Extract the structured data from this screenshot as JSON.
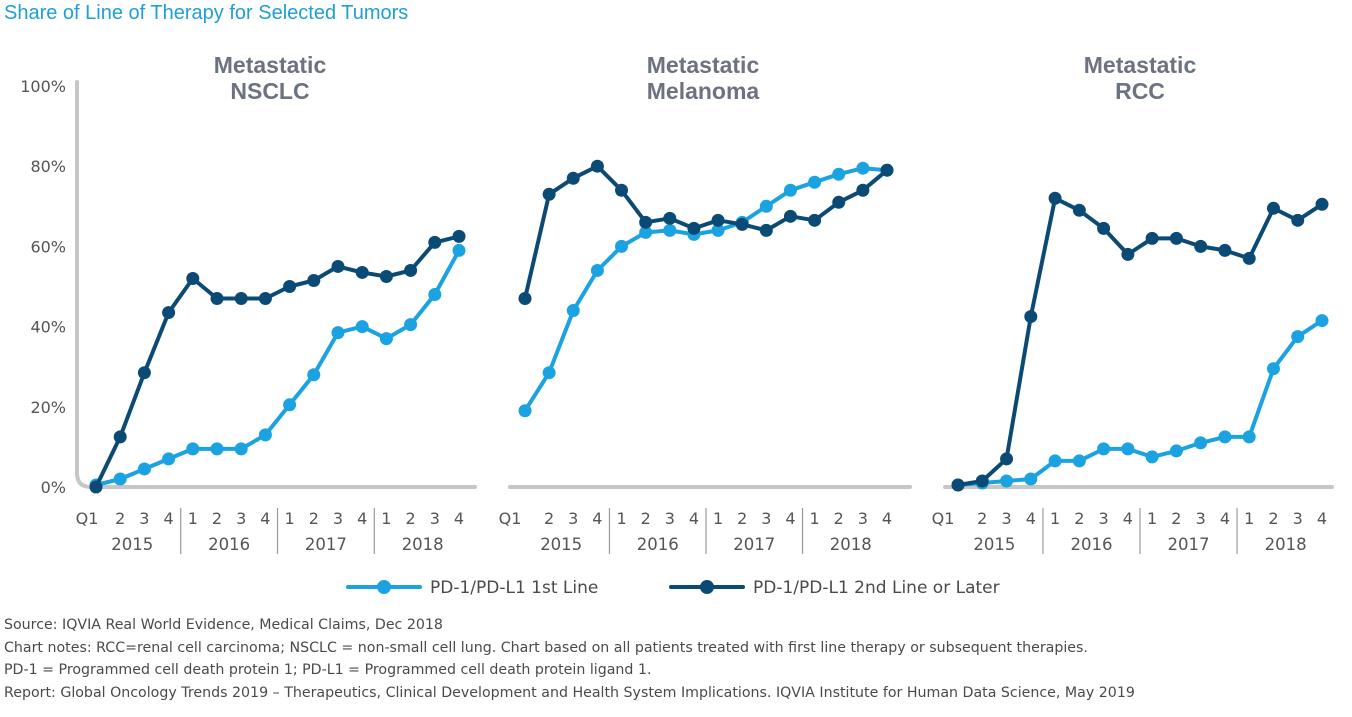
{
  "title": "Share of Line of Therapy for Selected Tumors",
  "colors": {
    "first_line": "#1aa3e0",
    "second_line": "#0b4a74",
    "axis": "#c6c6c6",
    "title": "#1d9fd8"
  },
  "notes": [
    "Source: IQVIA Real World Evidence, Medical Claims, Dec 2018",
    "Chart notes: RCC=renal cell carcinoma; NSCLC = non-small cell lung. Chart based on all patients treated with first line therapy or subsequent therapies.",
    "PD-1 = Programmed cell death protein 1; PD-L1 = Programmed cell death protein ligand 1.",
    "Report: Global Oncology Trends 2019 – Therapeutics, Clinical Development and Health System Implications. IQVIA Institute for Human Data Science, May 2019"
  ],
  "chart_data": [
    {
      "type": "line",
      "title": [
        "Metastatic",
        "NSCLC"
      ],
      "quarter_labels": [
        "Q1",
        "2",
        "3",
        "4",
        "1",
        "2",
        "3",
        "4",
        "1",
        "2",
        "3",
        "4",
        "1",
        "2",
        "3",
        "4"
      ],
      "years": [
        "2015",
        "2016",
        "2017",
        "2018"
      ],
      "y_ticks": [
        "0%",
        "20%",
        "40%",
        "60%",
        "80%",
        "100%"
      ],
      "ylim": [
        0,
        100
      ],
      "legend": [
        "PD-1/PD-L1 1st Line",
        "PD-1/PD-L1 2nd Line or Later"
      ],
      "series": [
        {
          "name": "PD-1/PD-L1 1st Line",
          "values": [
            0.5,
            2,
            4.5,
            7,
            9.5,
            9.5,
            9.5,
            13,
            20.5,
            28,
            38.5,
            40,
            37,
            40.5,
            48,
            59
          ]
        },
        {
          "name": "PD-1/PD-L1 2nd Line or Later",
          "values": [
            0,
            12.5,
            28.5,
            43.5,
            52,
            47,
            47,
            47,
            50,
            51.5,
            55,
            53.5,
            52.5,
            54,
            61,
            62.5
          ]
        }
      ]
    },
    {
      "type": "line",
      "title": [
        "Metastatic",
        "Melanoma"
      ],
      "quarter_labels": [
        "Q1",
        "2",
        "3",
        "4",
        "1",
        "2",
        "3",
        "4",
        "1",
        "2",
        "3",
        "4",
        "1",
        "2",
        "3",
        "4"
      ],
      "years": [
        "2015",
        "2016",
        "2017",
        "2018"
      ],
      "ylim": [
        0,
        100
      ],
      "series": [
        {
          "name": "PD-1/PD-L1 1st Line",
          "values": [
            19,
            28.5,
            44,
            54,
            60,
            63.5,
            64,
            63,
            64,
            66,
            70,
            74,
            76,
            78,
            79.5,
            79
          ]
        },
        {
          "name": "PD-1/PD-L1 2nd Line or Later",
          "values": [
            47,
            73,
            77,
            80,
            74,
            66,
            67,
            64.5,
            66.5,
            65.5,
            64,
            67.5,
            66.5,
            71,
            74,
            79
          ]
        }
      ]
    },
    {
      "type": "line",
      "title": [
        "Metastatic",
        "RCC"
      ],
      "quarter_labels": [
        "Q1",
        "2",
        "3",
        "4",
        "1",
        "2",
        "3",
        "4",
        "1",
        "2",
        "3",
        "4",
        "1",
        "2",
        "3",
        "4"
      ],
      "years": [
        "2015",
        "2016",
        "2017",
        "2018"
      ],
      "ylim": [
        0,
        100
      ],
      "series": [
        {
          "name": "PD-1/PD-L1 1st Line",
          "values": [
            0.5,
            1,
            1.5,
            2,
            6.5,
            6.5,
            9.5,
            9.5,
            7.5,
            9,
            11,
            12.5,
            12.5,
            29.5,
            37.5,
            41.5
          ]
        },
        {
          "name": "PD-1/PD-L1 2nd Line or Later",
          "values": [
            0.5,
            1.5,
            7,
            42.5,
            72,
            69,
            64.5,
            58,
            62,
            62,
            60,
            59,
            57,
            69.5,
            66.5,
            70.5
          ]
        }
      ]
    }
  ]
}
